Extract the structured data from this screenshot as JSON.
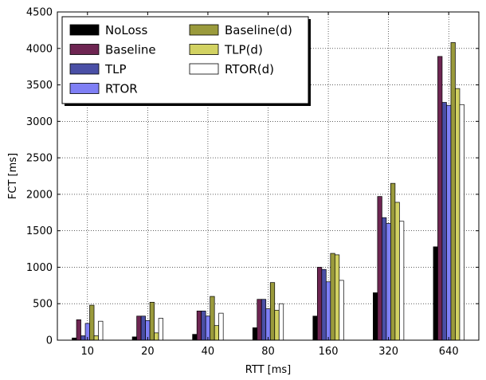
{
  "chart_data": {
    "type": "bar",
    "xlabel": "RTT [ms]",
    "ylabel": "FCT [ms]",
    "categories": [
      "10",
      "20",
      "40",
      "80",
      "160",
      "320",
      "640"
    ],
    "ylim": [
      0,
      4500
    ],
    "yticks": [
      0,
      500,
      1000,
      1500,
      2000,
      2500,
      3000,
      3500,
      4000,
      4500
    ],
    "grid": true,
    "legend_position": "top-left",
    "legend_columns": 2,
    "series": [
      {
        "name": "NoLoss",
        "color": "#000000",
        "values": [
          30,
          45,
          80,
          170,
          330,
          650,
          1280
        ]
      },
      {
        "name": "Baseline",
        "color": "#6e2552",
        "values": [
          280,
          330,
          400,
          560,
          1000,
          1970,
          3890
        ]
      },
      {
        "name": "TLP",
        "color": "#4a4fa6",
        "values": [
          60,
          330,
          400,
          560,
          970,
          1680,
          3260
        ]
      },
      {
        "name": "RTOR",
        "color": "#7f7ff5",
        "values": [
          230,
          270,
          330,
          430,
          800,
          1600,
          3220
        ]
      },
      {
        "name": "Baseline(d)",
        "color": "#9a9a3c",
        "values": [
          480,
          520,
          600,
          790,
          1190,
          2150,
          4080
        ]
      },
      {
        "name": "TLP(d)",
        "color": "#d2d262",
        "values": [
          60,
          100,
          200,
          410,
          1170,
          1890,
          3450
        ]
      },
      {
        "name": "RTOR(d)",
        "color": "#ffffff",
        "values": [
          260,
          300,
          370,
          500,
          820,
          1630,
          3230
        ]
      }
    ]
  }
}
